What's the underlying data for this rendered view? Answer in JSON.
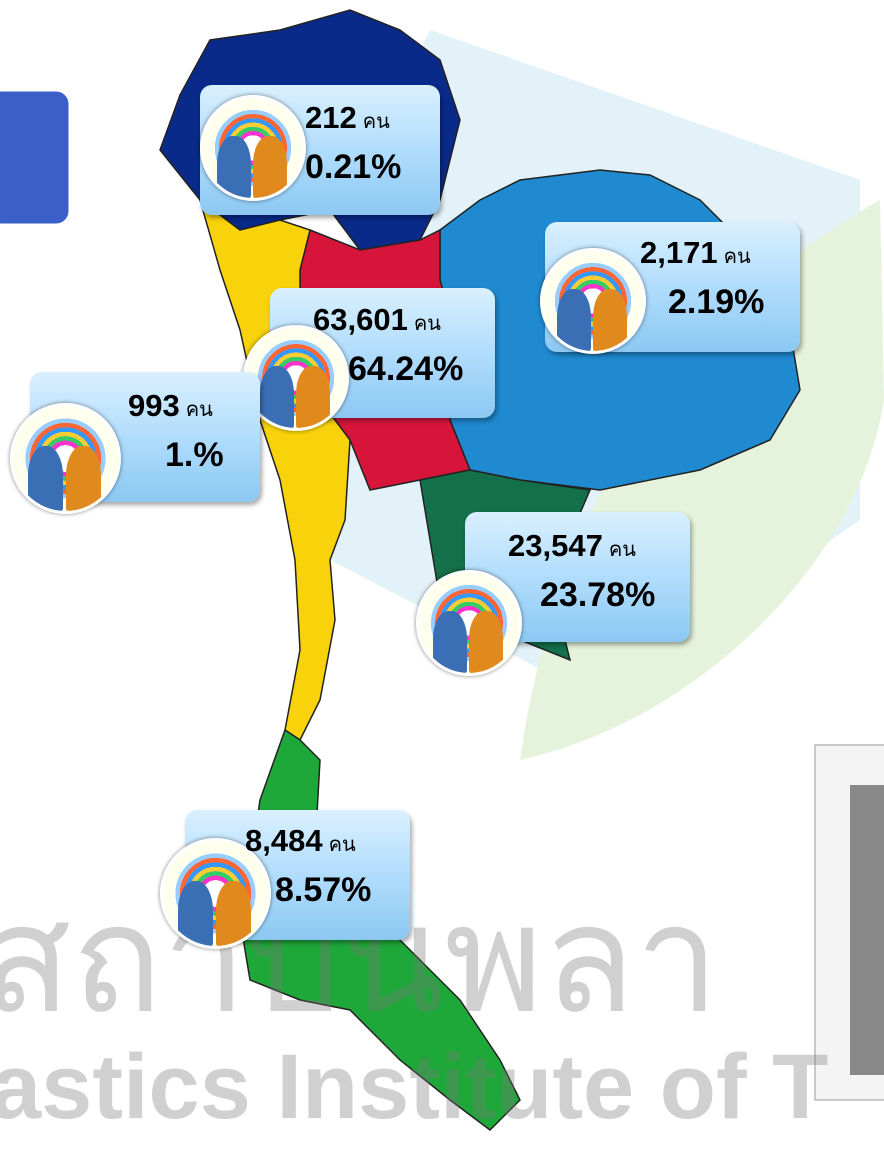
{
  "unit": "คน",
  "regions": [
    {
      "count": "212",
      "percent": "0.21%"
    },
    {
      "count": "2,171",
      "percent": "2.19%"
    },
    {
      "count": "63,601",
      "percent": "64.24%"
    },
    {
      "count": "993",
      "percent": "1.%"
    },
    {
      "count": "23,547",
      "percent": "23.78%"
    },
    {
      "count": "8,484",
      "percent": "8.57%"
    }
  ],
  "watermark": {
    "thai": "สถาบันพลา",
    "english": "astics Institute of T"
  }
}
